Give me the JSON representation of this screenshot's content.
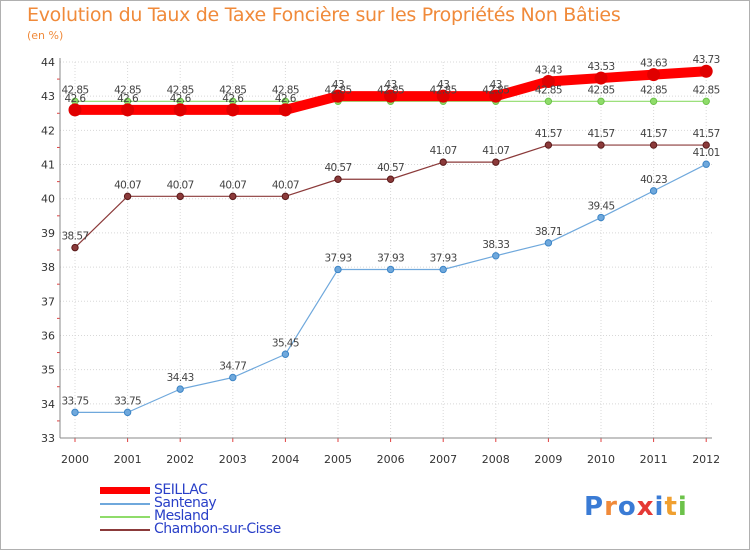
{
  "chart_data": {
    "type": "line",
    "title": "Evolution du Taux de Taxe Foncière sur les Propriétés Non Bâties",
    "ylabel": "(en %)",
    "xlabel": "",
    "categories": [
      "2000",
      "2001",
      "2002",
      "2003",
      "2004",
      "2005",
      "2006",
      "2007",
      "2008",
      "2009",
      "2010",
      "2011",
      "2012"
    ],
    "ylim": [
      33,
      44
    ],
    "yticks": [
      33,
      34,
      35,
      36,
      37,
      38,
      39,
      40,
      41,
      42,
      43,
      44
    ],
    "series": [
      {
        "name": "SEILLAC",
        "color": "#ff0000",
        "marker": "#e00000",
        "values": [
          42.6,
          42.6,
          42.6,
          42.6,
          42.6,
          43,
          43,
          43,
          43,
          43.43,
          43.53,
          43.63,
          43.73
        ],
        "labels": [
          "42.6",
          "42.6",
          "42.6",
          "42.6",
          "42.6",
          "43",
          "43",
          "43",
          "43",
          "43.43",
          "43.53",
          "43.63",
          "43.73"
        ]
      },
      {
        "name": "Santenay",
        "color": "#6fa8dc",
        "marker": "#3d85c6",
        "values": [
          33.75,
          33.75,
          34.43,
          34.77,
          35.45,
          37.93,
          37.93,
          37.93,
          38.33,
          38.71,
          39.45,
          40.23,
          41.01
        ],
        "labels": [
          "33.75",
          "33.75",
          "34.43",
          "34.77",
          "35.45",
          "37.93",
          "37.93",
          "37.93",
          "38.33",
          "38.71",
          "39.45",
          "40.23",
          "41.01"
        ]
      },
      {
        "name": "Mesland",
        "color": "#8fdc6a",
        "marker": "#6cc24a",
        "values": [
          42.85,
          42.85,
          42.85,
          42.85,
          42.85,
          42.85,
          42.85,
          42.85,
          42.85,
          42.85,
          42.85,
          42.85,
          42.85
        ],
        "labels": [
          "42.85",
          "42.85",
          "42.85",
          "42.85",
          "42.85",
          "42.85",
          "42.85",
          "42.85",
          "42.85",
          "42.85",
          "42.85",
          "42.85",
          "42.85"
        ]
      },
      {
        "name": "Chambon-sur-Cisse",
        "color": "#8b3a3a",
        "marker": "#5a1a1a",
        "values": [
          38.57,
          40.07,
          40.07,
          40.07,
          40.07,
          40.57,
          40.57,
          41.07,
          41.07,
          41.57,
          41.57,
          41.57,
          41.57
        ],
        "labels": [
          "38.57",
          "40.07",
          "40.07",
          "40.07",
          "40.07",
          "40.57",
          "40.57",
          "41.07",
          "41.07",
          "41.57",
          "41.57",
          "41.57",
          "41.57"
        ]
      }
    ],
    "legend_position": "bottom-left"
  },
  "logo": {
    "text": "Proxiti",
    "letters": [
      "P",
      "r",
      "o",
      "x",
      "i",
      "t",
      "i"
    ],
    "colors": [
      "#3a7bd5",
      "#f08a3a",
      "#3a7bd5",
      "#e53935",
      "#3a7bd5",
      "#f0a030",
      "#6cc24a"
    ]
  }
}
